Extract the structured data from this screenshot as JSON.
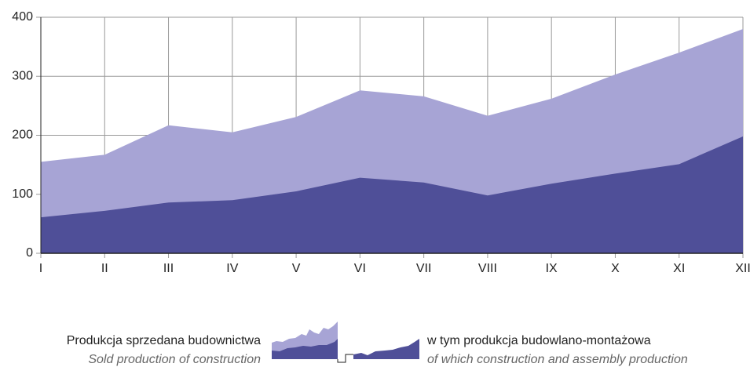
{
  "chart_data": {
    "type": "area",
    "categories": [
      "I",
      "II",
      "III",
      "IV",
      "V",
      "VI",
      "VII",
      "VIII",
      "IX",
      "X",
      "XI",
      "XII"
    ],
    "series": [
      {
        "name": "Produkcja sprzedana budownictwa",
        "name_en": "Sold production of construction",
        "color": "#a7a4d5",
        "values": [
          155,
          167,
          217,
          205,
          231,
          276,
          266,
          233,
          262,
          303,
          340,
          380
        ]
      },
      {
        "name": "w tym produkcja budowlano-montażowa",
        "name_en": "of which construction and assembly production",
        "color": "#4f4f98",
        "values": [
          61,
          72,
          86,
          90,
          105,
          128,
          120,
          98,
          118,
          135,
          151,
          198
        ]
      }
    ],
    "ylim": [
      0,
      400
    ],
    "yticks": [
      0,
      100,
      200,
      300,
      400
    ],
    "grid": true
  }
}
